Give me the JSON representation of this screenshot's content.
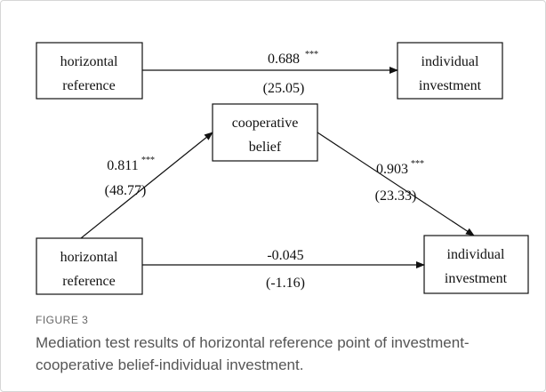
{
  "nodes": [
    {
      "lines": [
        "horizontal",
        "reference"
      ]
    },
    {
      "lines": [
        "individual",
        "investment"
      ]
    },
    {
      "lines": [
        "cooperative",
        "belief"
      ]
    },
    {
      "lines": [
        "horizontal",
        "reference"
      ]
    },
    {
      "lines": [
        "individual",
        "investment"
      ]
    }
  ],
  "edges": [
    {
      "coefficient": "0.688",
      "significance": "***",
      "t": "(25.05)"
    },
    {
      "coefficient": "0.811",
      "significance": "***",
      "t": "(48.77)"
    },
    {
      "coefficient": "0.903",
      "significance": "***",
      "t": "(23.33)"
    },
    {
      "coefficient": "-0.045",
      "t": "(-1.16)"
    }
  ],
  "figure": {
    "label": "FIGURE 3",
    "caption": "Mediation test results of horizontal reference point of investment-cooperative belief-individual investment."
  }
}
